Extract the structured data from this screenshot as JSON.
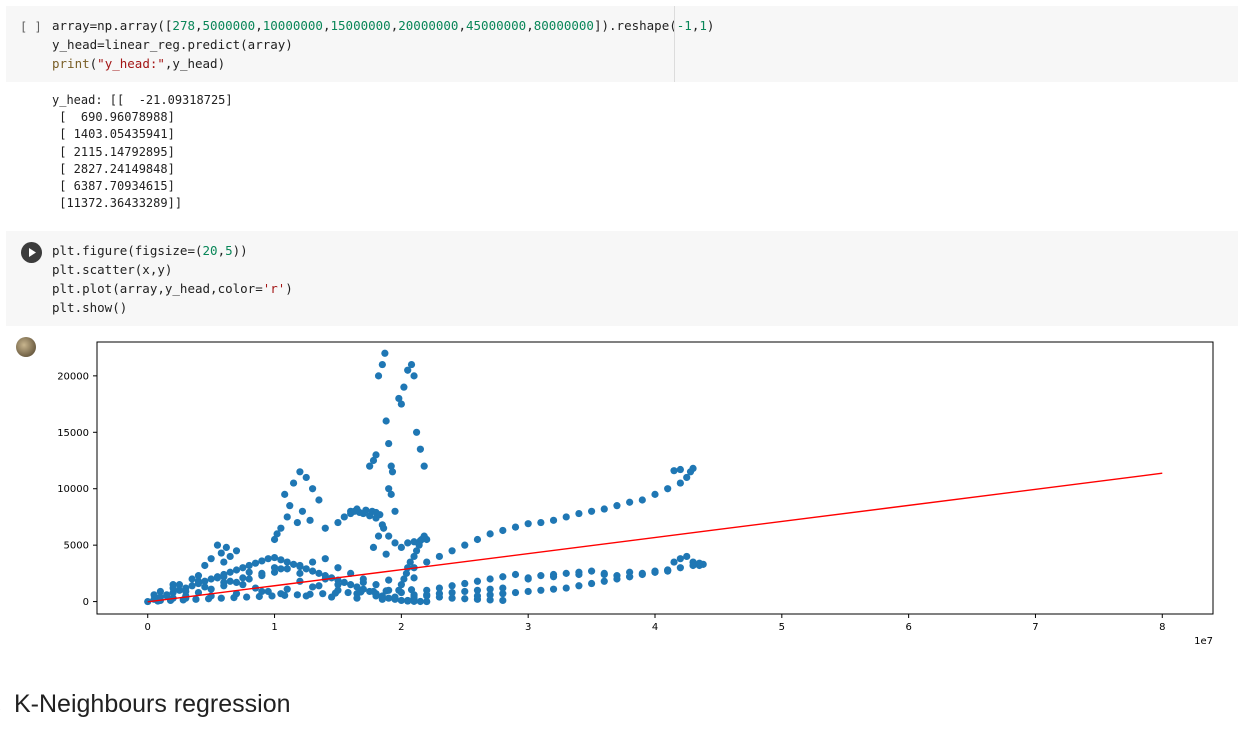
{
  "cell1": {
    "bracket": "[ ]",
    "code_lines": [
      [
        {
          "t": "array=np.array([",
          "c": ""
        },
        {
          "t": "278",
          "c": "num"
        },
        {
          "t": ",",
          "c": ""
        },
        {
          "t": "5000000",
          "c": "num"
        },
        {
          "t": ",",
          "c": ""
        },
        {
          "t": "10000000",
          "c": "num"
        },
        {
          "t": ",",
          "c": ""
        },
        {
          "t": "15000000",
          "c": "num"
        },
        {
          "t": ",",
          "c": ""
        },
        {
          "t": "20000000",
          "c": "num"
        },
        {
          "t": ",",
          "c": ""
        },
        {
          "t": "45000000",
          "c": "num"
        },
        {
          "t": ",",
          "c": ""
        },
        {
          "t": "80000000",
          "c": "num"
        },
        {
          "t": "]).reshape(",
          "c": ""
        },
        {
          "t": "-1",
          "c": "num"
        },
        {
          "t": ",",
          "c": ""
        },
        {
          "t": "1",
          "c": "num"
        },
        {
          "t": ")",
          "c": ""
        }
      ],
      [
        {
          "t": "y_head=linear_reg.predict(array)",
          "c": ""
        }
      ],
      [
        {
          "t": "print",
          "c": "kw"
        },
        {
          "t": "(",
          "c": ""
        },
        {
          "t": "\"y_head:\"",
          "c": "str"
        },
        {
          "t": ",y_head)",
          "c": ""
        }
      ]
    ],
    "output_lines": [
      "y_head: [[  -21.09318725]",
      " [  690.96078988]",
      " [ 1403.05435941]",
      " [ 2115.14792895]",
      " [ 2827.24149848]",
      " [ 6387.70934615]",
      " [11372.36433289]]"
    ]
  },
  "cell2": {
    "code_lines": [
      [
        {
          "t": "plt.figure(figsize=(",
          "c": ""
        },
        {
          "t": "20",
          "c": "num"
        },
        {
          "t": ",",
          "c": ""
        },
        {
          "t": "5",
          "c": "num"
        },
        {
          "t": "))",
          "c": ""
        }
      ],
      [
        {
          "t": "plt.scatter(x,y)",
          "c": ""
        }
      ],
      [
        {
          "t": "plt.plot(array,y_head,color=",
          "c": ""
        },
        {
          "t": "'r'",
          "c": "str"
        },
        {
          "t": ")",
          "c": ""
        }
      ],
      [
        {
          "t": "plt.show()",
          "c": ""
        }
      ]
    ]
  },
  "chart_data": {
    "type": "scatter",
    "title": "",
    "xlabel": "",
    "ylabel": "",
    "x_offset_label": "1e7",
    "xlim": [
      -0.4,
      8.4
    ],
    "ylim": [
      -1100,
      23000
    ],
    "x_ticks": [
      0,
      1,
      2,
      3,
      4,
      5,
      6,
      7,
      8
    ],
    "y_ticks": [
      0,
      5000,
      10000,
      15000,
      20000
    ],
    "grid": false,
    "colors": {
      "scatter": "#1f77b4",
      "line": "#ff0000"
    },
    "line_series": {
      "x": [
        2.78e-05,
        0.5,
        1.0,
        1.5,
        2.0,
        4.5,
        8.0
      ],
      "y": [
        -21.09,
        690.96,
        1403.05,
        2115.15,
        2827.24,
        6387.71,
        11372.36
      ]
    },
    "scatter_series": {
      "x": [
        0,
        0.05,
        0.1,
        0.15,
        0.2,
        0.25,
        0.3,
        0.35,
        0.4,
        0.45,
        0.5,
        0.55,
        0.6,
        0.65,
        0.7,
        0.75,
        0.8,
        0.85,
        0.9,
        0.95,
        1.0,
        1.05,
        1.1,
        1.15,
        1.2,
        1.25,
        1.3,
        1.35,
        1.4,
        1.45,
        1.5,
        1.55,
        1.6,
        1.65,
        1.7,
        1.75,
        1.8,
        1.85,
        1.9,
        1.95,
        2.0,
        2.05,
        2.1,
        2.15,
        2.2,
        0.1,
        0.2,
        0.3,
        0.4,
        0.5,
        0.6,
        0.7,
        0.8,
        0.9,
        1.0,
        1.1,
        1.2,
        1.3,
        1.4,
        1.5,
        1.6,
        1.7,
        1.8,
        1.9,
        2.0,
        2.1,
        2.2,
        2.3,
        2.4,
        2.5,
        2.6,
        2.7,
        2.8,
        0.15,
        0.3,
        0.45,
        0.6,
        0.75,
        0.9,
        1.05,
        1.2,
        1.35,
        1.5,
        1.65,
        1.8,
        1.95,
        2.1,
        0.3,
        0.5,
        0.7,
        0.9,
        1.1,
        1.3,
        1.5,
        1.7,
        1.9,
        2.1,
        0.2,
        0.4,
        0.6,
        0.8,
        1.0,
        1.2,
        1.4,
        0.6,
        0.65,
        0.7,
        0.55,
        0.5,
        0.45,
        0.62,
        0.58,
        1.0,
        1.05,
        1.1,
        1.12,
        1.08,
        1.15,
        1.2,
        1.25,
        1.3,
        1.35,
        1.02,
        1.18,
        1.22,
        1.28,
        1.4,
        1.5,
        1.55,
        1.6,
        1.65,
        1.7,
        1.75,
        1.8,
        1.85,
        1.82,
        1.78,
        1.88,
        1.6,
        1.63,
        1.67,
        1.72,
        1.77,
        1.8,
        1.83,
        1.86,
        1.9,
        1.95,
        2.0,
        2.05,
        2.1,
        2.15,
        2.2,
        1.75,
        1.78,
        1.8,
        1.82,
        1.85,
        1.87,
        1.88,
        1.9,
        1.9,
        1.92,
        1.92,
        1.93,
        1.95,
        1.98,
        2.0,
        2.02,
        2.05,
        2.08,
        2.1,
        2.12,
        2.15,
        2.18,
        2.0,
        2.02,
        2.04,
        2.05,
        2.07,
        2.1,
        2.12,
        2.14,
        2.16,
        2.18,
        2.1,
        2.2,
        2.3,
        2.4,
        2.5,
        2.6,
        2.7,
        2.8,
        2.9,
        3.0,
        3.1,
        3.2,
        3.3,
        3.4,
        3.5,
        3.6,
        3.7,
        3.8,
        3.9,
        4.0,
        4.1,
        4.2,
        4.25,
        4.28,
        4.3,
        4.2,
        4.15,
        2.2,
        2.3,
        2.4,
        2.5,
        2.6,
        2.7,
        2.8,
        2.9,
        3.0,
        3.1,
        3.2,
        3.3,
        3.4,
        3.5,
        3.6,
        3.7,
        3.8,
        3.9,
        4.0,
        4.1,
        4.15,
        4.2,
        4.25,
        4.3,
        4.35,
        4.38,
        2.1,
        2.2,
        2.3,
        2.4,
        2.5,
        2.6,
        2.7,
        2.8,
        3.0,
        3.2,
        3.4,
        3.6,
        3.8,
        4.0,
        4.1,
        2.6,
        2.7,
        2.8,
        2.9,
        3.0,
        3.1,
        3.2,
        3.3,
        3.4,
        3.5,
        3.6,
        3.7,
        3.8,
        3.9,
        4.0,
        4.1,
        4.2,
        4.3,
        4.35,
        0.05,
        0.1,
        0.2,
        0.25,
        0.35,
        0.4,
        0.55,
        0.65,
        0.75,
        0.85,
        0.95,
        1.05,
        1.25,
        1.45,
        1.65,
        1.85,
        2.05,
        0.08,
        0.18,
        0.28,
        0.38,
        0.48,
        0.58,
        0.68,
        0.78,
        0.88,
        0.98,
        1.08,
        1.18,
        1.28,
        1.38,
        1.48,
        1.58,
        1.68,
        1.78,
        1.88,
        1.98,
        2.08
      ],
      "y": [
        0,
        200,
        400,
        600,
        800,
        1000,
        1200,
        1400,
        1600,
        1800,
        2000,
        2200,
        2400,
        2600,
        2800,
        3000,
        3200,
        3400,
        3600,
        3800,
        3900,
        3700,
        3500,
        3300,
        3100,
        2900,
        2700,
        2500,
        2300,
        2100,
        1900,
        1700,
        1500,
        1300,
        1100,
        900,
        700,
        500,
        300,
        200,
        100,
        50,
        20,
        10,
        0,
        100,
        300,
        500,
        800,
        1100,
        1400,
        1700,
        2000,
        2300,
        2600,
        2900,
        3200,
        3500,
        3800,
        3000,
        2500,
        2000,
        1500,
        1000,
        800,
        600,
        500,
        400,
        300,
        250,
        200,
        150,
        100,
        500,
        900,
        1300,
        1700,
        2100,
        2500,
        2900,
        1800,
        1400,
        1000,
        700,
        500,
        400,
        300,
        300,
        500,
        700,
        900,
        1100,
        1300,
        1500,
        1700,
        1900,
        2100,
        1500,
        1800,
        2200,
        2600,
        3000,
        2500,
        2000,
        3500,
        4000,
        4500,
        5000,
        3800,
        3200,
        4800,
        4300,
        5500,
        6500,
        7500,
        8500,
        9500,
        10500,
        11500,
        11000,
        10000,
        9000,
        6000,
        7000,
        8000,
        7200,
        6500,
        7000,
        7500,
        8000,
        8200,
        7800,
        7600,
        7400,
        6800,
        5800,
        4800,
        4200,
        7800,
        8000,
        7900,
        8100,
        8000,
        7900,
        7700,
        6500,
        5800,
        5200,
        4800,
        5200,
        5300,
        5400,
        5500,
        12000,
        12500,
        13000,
        20000,
        21000,
        22000,
        16000,
        10000,
        14000,
        12000,
        9500,
        11500,
        8000,
        18000,
        17500,
        19000,
        20500,
        21000,
        20000,
        15000,
        13500,
        12000,
        1500,
        2000,
        2500,
        3000,
        3500,
        4000,
        4500,
        5000,
        5500,
        5800,
        3000,
        3500,
        4000,
        4500,
        5000,
        5500,
        6000,
        6300,
        6600,
        6900,
        7000,
        7200,
        7500,
        7800,
        8000,
        8200,
        8500,
        8800,
        9000,
        9500,
        10000,
        10500,
        11000,
        11500,
        11800,
        11700,
        11600,
        1000,
        1200,
        1400,
        1600,
        1800,
        2000,
        2200,
        2400,
        2100,
        2300,
        2400,
        2500,
        2600,
        2700,
        2400,
        2300,
        2200,
        2500,
        2600,
        2700,
        3500,
        3800,
        4000,
        3500,
        3200,
        3300,
        500,
        600,
        700,
        800,
        900,
        1000,
        1100,
        1200,
        2000,
        2200,
        2400,
        2500,
        2600,
        2700,
        2800,
        500,
        600,
        700,
        800,
        900,
        1000,
        1100,
        1200,
        1400,
        1600,
        1800,
        2000,
        2200,
        2400,
        2600,
        2800,
        3000,
        3200,
        3400,
        600,
        900,
        1200,
        1500,
        2000,
        2300,
        2100,
        1800,
        1500,
        1200,
        900,
        700,
        500,
        400,
        300,
        200,
        100,
        50,
        100,
        150,
        200,
        250,
        300,
        350,
        400,
        450,
        500,
        550,
        600,
        650,
        700,
        750,
        800,
        850,
        900,
        950,
        1000,
        1050
      ]
    }
  }
}
